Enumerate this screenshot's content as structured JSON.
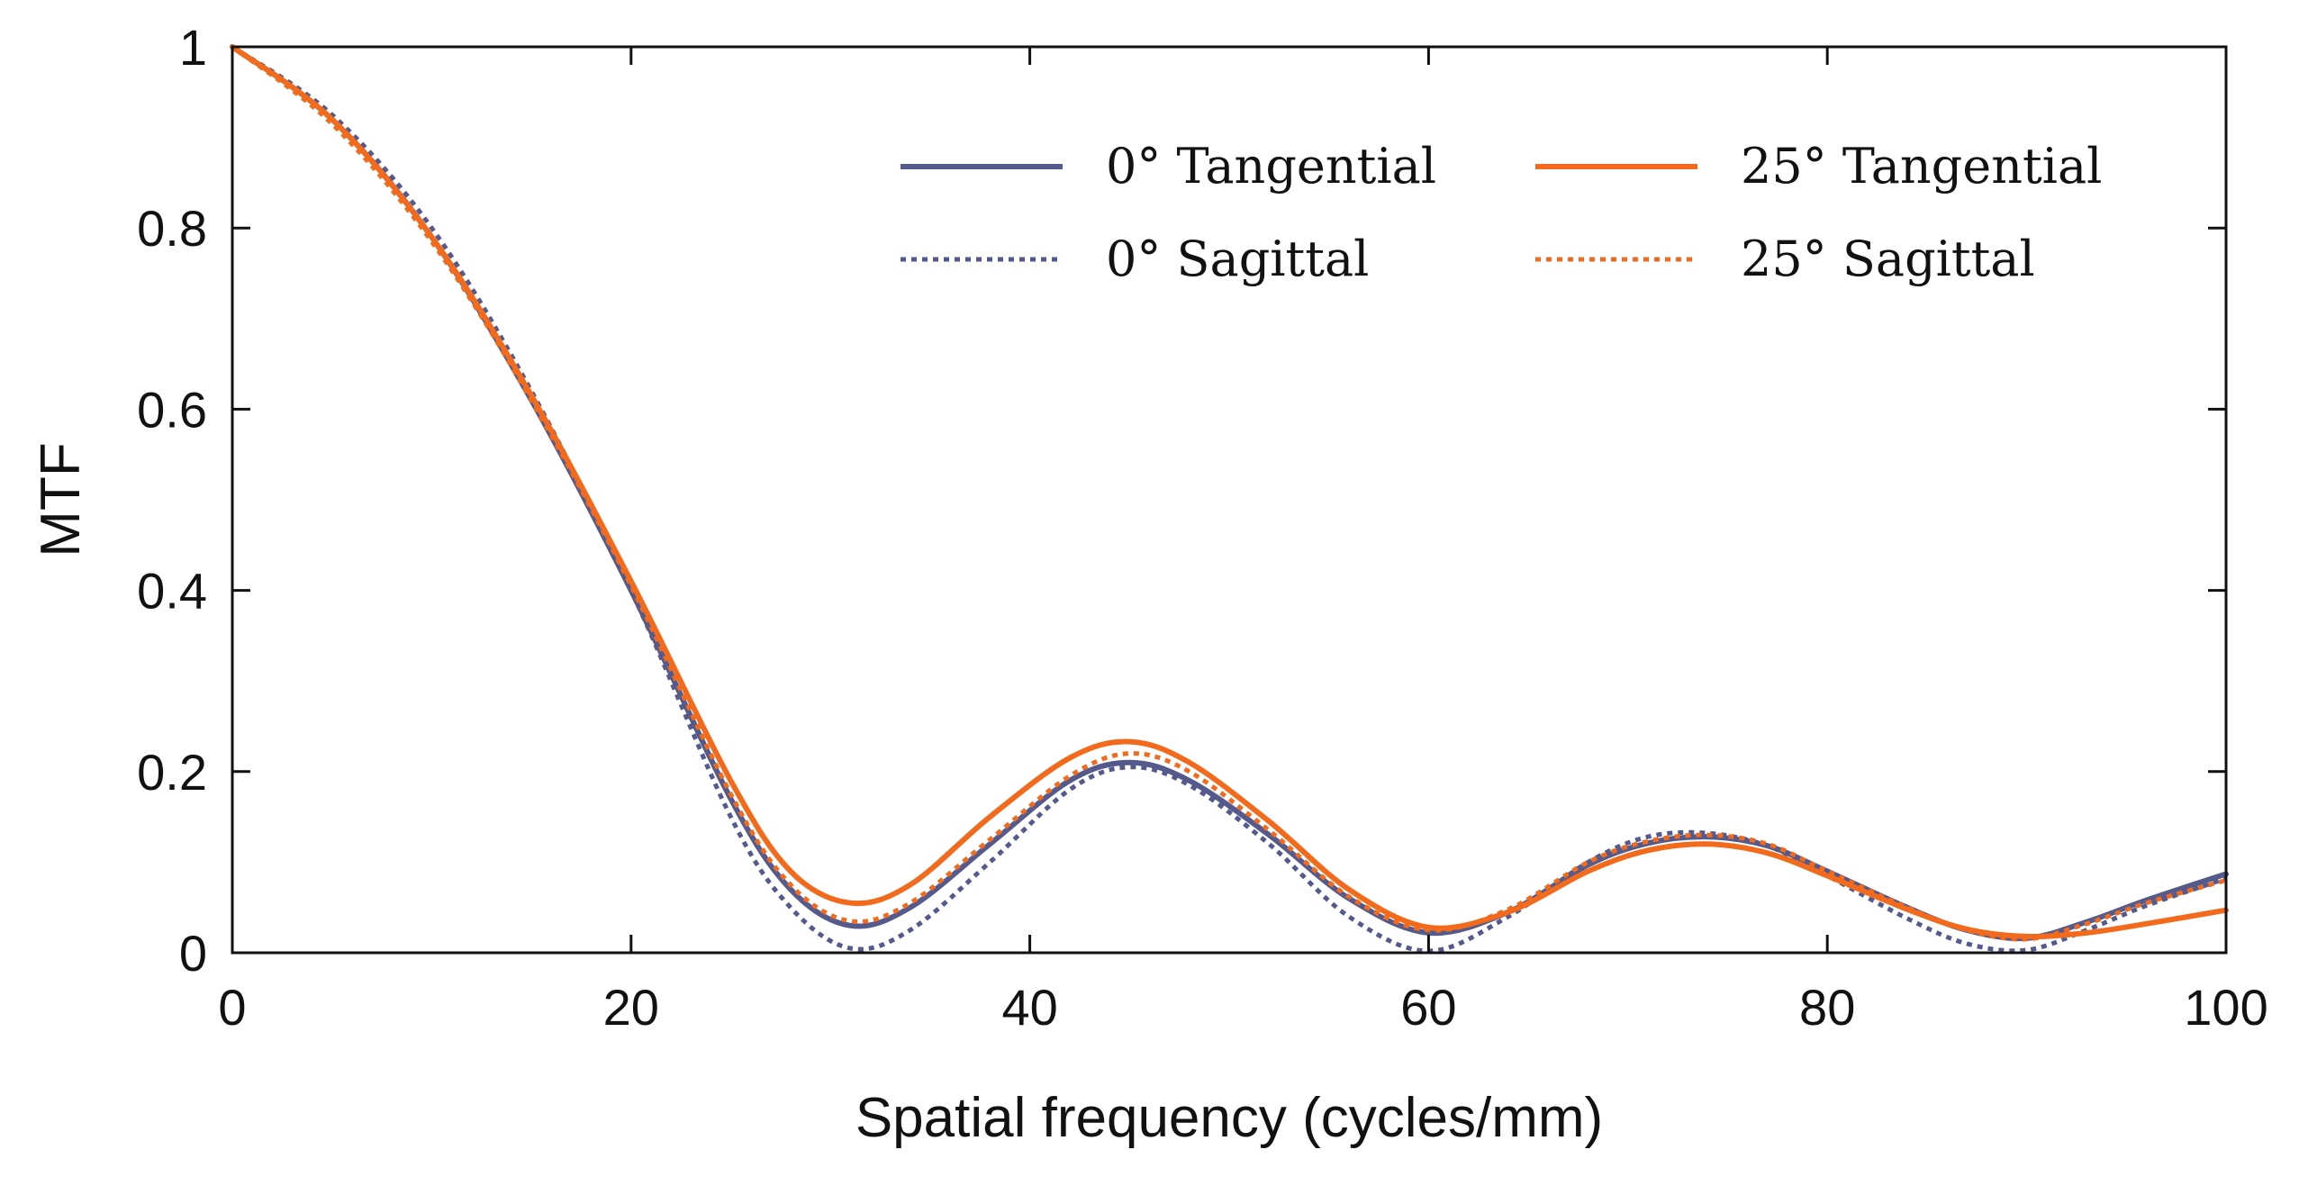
{
  "chart_data": {
    "type": "line",
    "title": "",
    "xlabel": "Spatial frequency (cycles/mm)",
    "ylabel": "MTF",
    "xlim": [
      0,
      100
    ],
    "ylim": [
      0,
      1
    ],
    "xticks": [
      0,
      20,
      40,
      60,
      80,
      100
    ],
    "yticks": [
      0,
      0.2,
      0.4,
      0.6,
      0.8,
      1
    ],
    "xtick_labels": [
      "0",
      "20",
      "40",
      "60",
      "80",
      "100"
    ],
    "ytick_labels": [
      "0",
      "0.2",
      "0.4",
      "0.6",
      "0.8",
      "1"
    ],
    "grid": false,
    "legend_position": "top-right",
    "series": [
      {
        "name": "0° Tangential",
        "color": "#555a8c",
        "dash": "solid",
        "x": [
          0,
          5,
          10,
          15,
          20,
          25,
          28,
          31,
          34,
          38,
          42,
          45,
          48,
          52,
          56,
          60,
          64,
          68,
          71,
          74,
          77,
          80,
          84,
          87,
          90,
          93,
          96,
          100
        ],
        "y": [
          1.0,
          0.92,
          0.79,
          0.61,
          0.4,
          0.17,
          0.07,
          0.03,
          0.05,
          0.12,
          0.19,
          0.21,
          0.19,
          0.13,
          0.06,
          0.022,
          0.045,
          0.097,
          0.121,
          0.128,
          0.118,
          0.09,
          0.05,
          0.025,
          0.016,
          0.034,
          0.058,
          0.087
        ]
      },
      {
        "name": "0° Sagittal",
        "color": "#555a8c",
        "dash": "dotted",
        "x": [
          0,
          5,
          10,
          15,
          20,
          25,
          28,
          31,
          34,
          38,
          42,
          45,
          48,
          52,
          56,
          60,
          64,
          68,
          71,
          74,
          77,
          80,
          84,
          87,
          90,
          93,
          96,
          100
        ],
        "y": [
          1.0,
          0.925,
          0.8,
          0.62,
          0.4,
          0.15,
          0.05,
          0.005,
          0.025,
          0.1,
          0.18,
          0.205,
          0.185,
          0.12,
          0.04,
          0.002,
          0.04,
          0.1,
          0.128,
          0.132,
          0.118,
          0.085,
          0.038,
          0.01,
          0.003,
          0.025,
          0.052,
          0.082
        ]
      },
      {
        "name": "25° Tangential",
        "color": "#f26b1d",
        "dash": "solid",
        "x": [
          0,
          5,
          10,
          15,
          20,
          25,
          28,
          31,
          34,
          38,
          42,
          45,
          48,
          52,
          56,
          60,
          64,
          68,
          71,
          74,
          77,
          80,
          84,
          87,
          90,
          93,
          96,
          100
        ],
        "y": [
          1.0,
          0.92,
          0.79,
          0.615,
          0.41,
          0.19,
          0.09,
          0.055,
          0.075,
          0.15,
          0.215,
          0.233,
          0.21,
          0.145,
          0.07,
          0.028,
          0.045,
          0.09,
          0.113,
          0.12,
          0.11,
          0.085,
          0.048,
          0.026,
          0.018,
          0.022,
          0.032,
          0.047
        ]
      },
      {
        "name": "25° Sagittal",
        "color": "#f26b1d",
        "dash": "dotted",
        "x": [
          0,
          5,
          10,
          15,
          20,
          25,
          28,
          31,
          34,
          38,
          42,
          45,
          48,
          52,
          56,
          60,
          64,
          68,
          71,
          74,
          77,
          80,
          84,
          87,
          90,
          93,
          96,
          100
        ],
        "y": [
          1.0,
          0.915,
          0.785,
          0.61,
          0.405,
          0.175,
          0.075,
          0.035,
          0.055,
          0.125,
          0.195,
          0.22,
          0.2,
          0.135,
          0.062,
          0.025,
          0.048,
          0.1,
          0.123,
          0.13,
          0.12,
          0.09,
          0.05,
          0.025,
          0.015,
          0.032,
          0.055,
          0.08
        ]
      }
    ]
  }
}
